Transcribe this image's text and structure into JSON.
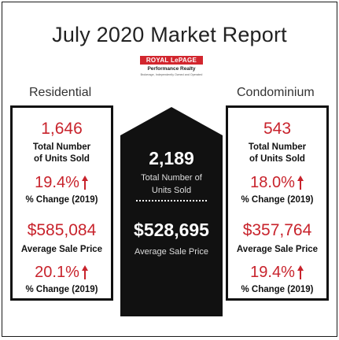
{
  "title": "July 2020 Market Report",
  "logo": {
    "brand": "ROYAL LePAGE",
    "subtitle": "Performance Realty",
    "tagline": "Brokerage, Independently Owned and Operated"
  },
  "colors": {
    "accent": "#c8232c",
    "dark": "#111111",
    "background": "#ffffff"
  },
  "residential": {
    "heading": "Residential",
    "units_sold": "1,646",
    "units_label_1": "Total Number",
    "units_label_2": "of Units Sold",
    "units_change": "19.4%",
    "change_label": "% Change (2019)",
    "avg_price": "$585,084",
    "avg_price_label": "Average Sale Price",
    "price_change": "20.1%",
    "price_change_label": "% Change (2019)",
    "arrow_icon": "arrow-up-icon"
  },
  "total": {
    "units_sold": "2,189",
    "units_label_1": "Total Number of",
    "units_label_2": "Units Sold",
    "avg_price": "$528,695",
    "avg_price_label": "Average Sale Price"
  },
  "condominium": {
    "heading": "Condominium",
    "units_sold": "543",
    "units_label_1": "Total Number",
    "units_label_2": "of Units Sold",
    "units_change": "18.0%",
    "change_label": "% Change (2019)",
    "avg_price": "$357,764",
    "avg_price_label": "Average Sale Price",
    "price_change": "19.4%",
    "price_change_label": "% Change (2019)",
    "arrow_icon": "arrow-up-icon"
  }
}
